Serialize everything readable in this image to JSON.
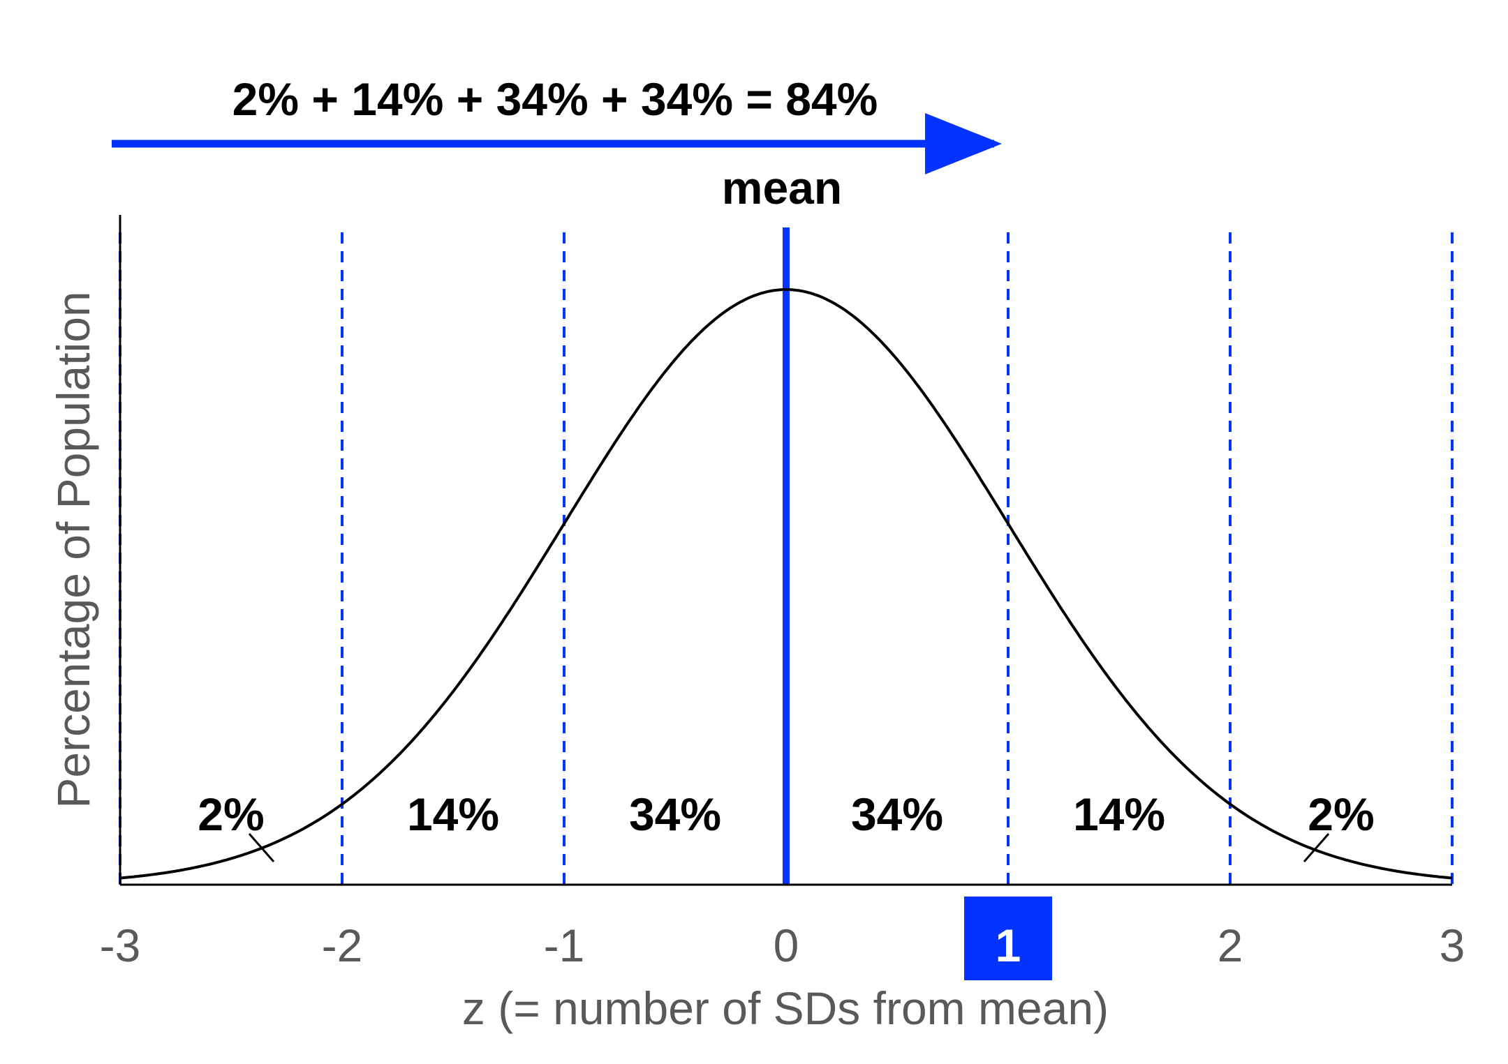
{
  "chart_data": {
    "type": "line",
    "title": "2% + 14% + 34% + 34% = 84%",
    "xlabel": "z (= number of SDs from mean)",
    "ylabel": "Percentage of Population",
    "xlim": [
      -3,
      3
    ],
    "x_ticks": [
      "-3",
      "-2",
      "-1",
      "0",
      "1",
      "2",
      "3"
    ],
    "highlighted_tick": "1",
    "mean_label": "mean",
    "mean_x": 0,
    "sd_lines": [
      -3,
      -2,
      -1,
      1,
      2,
      3
    ],
    "cumulative_arrow": {
      "from": -3,
      "to": 1
    },
    "region_labels": [
      {
        "text": "2%",
        "x": -2.5
      },
      {
        "text": "14%",
        "x": -1.5
      },
      {
        "text": "34%",
        "x": -0.5
      },
      {
        "text": "34%",
        "x": 0.5
      },
      {
        "text": "14%",
        "x": 1.5
      },
      {
        "text": "2%",
        "x": 2.5
      }
    ],
    "curve": "standard normal density",
    "colors": {
      "accent": "#0433ff",
      "curve": "#000000",
      "axis_text": "#595959",
      "label_text": "#000000",
      "highlight_text": "#ffffff"
    }
  }
}
